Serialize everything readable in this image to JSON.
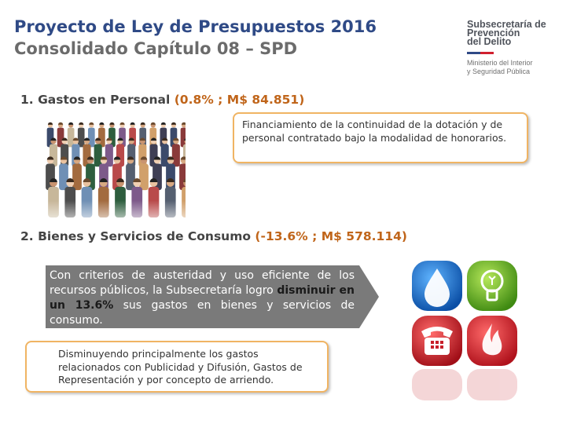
{
  "header": {
    "title_line1": "Proyecto de Ley de Presupuestos 2016",
    "title_line2": "Consolidado Capítulo 08 – SPD"
  },
  "logo": {
    "org_line1": "Subsecretaría de",
    "org_line2": "Prevención",
    "org_line3": "del Delito",
    "ministry_line1": "Ministerio del Interior",
    "ministry_line2": "y Seguridad Pública",
    "colors": {
      "blue": "#2f4a86",
      "red": "#d0202e"
    }
  },
  "section1": {
    "heading_label": "1. Gastos en Personal",
    "heading_amount": "(0.8% ; M$ 84.851)",
    "callout": "Financiamiento de la continuidad de la dotación y de personal contratado bajo la modalidad de honorarios."
  },
  "section2": {
    "heading_label": "2. Bienes y Servicios de Consumo",
    "heading_amount": "(-13.6% ; M$ 578.114)",
    "gray_text_before": "Con criterios de austeridad y uso eficiente de los recursos públicos, la Subsecretaría logro",
    "gray_text_bold": "disminuir en un 13.6%",
    "gray_text_after": "sus gastos en bienes y servicios de consumo.",
    "callout": "Disminuyendo principalmente los gastos relacionados con Publicidad y Difusión, Gastos de Representación y por concepto de arriendo."
  },
  "icons": [
    "water-drop-icon",
    "light-bulb-icon",
    "telephone-icon",
    "flame-icon"
  ],
  "colors": {
    "title_blue": "#2f4a86",
    "amount_orange": "#c0651a",
    "callout_border": "#f0b463",
    "gray_box": "#7a7a7a"
  }
}
